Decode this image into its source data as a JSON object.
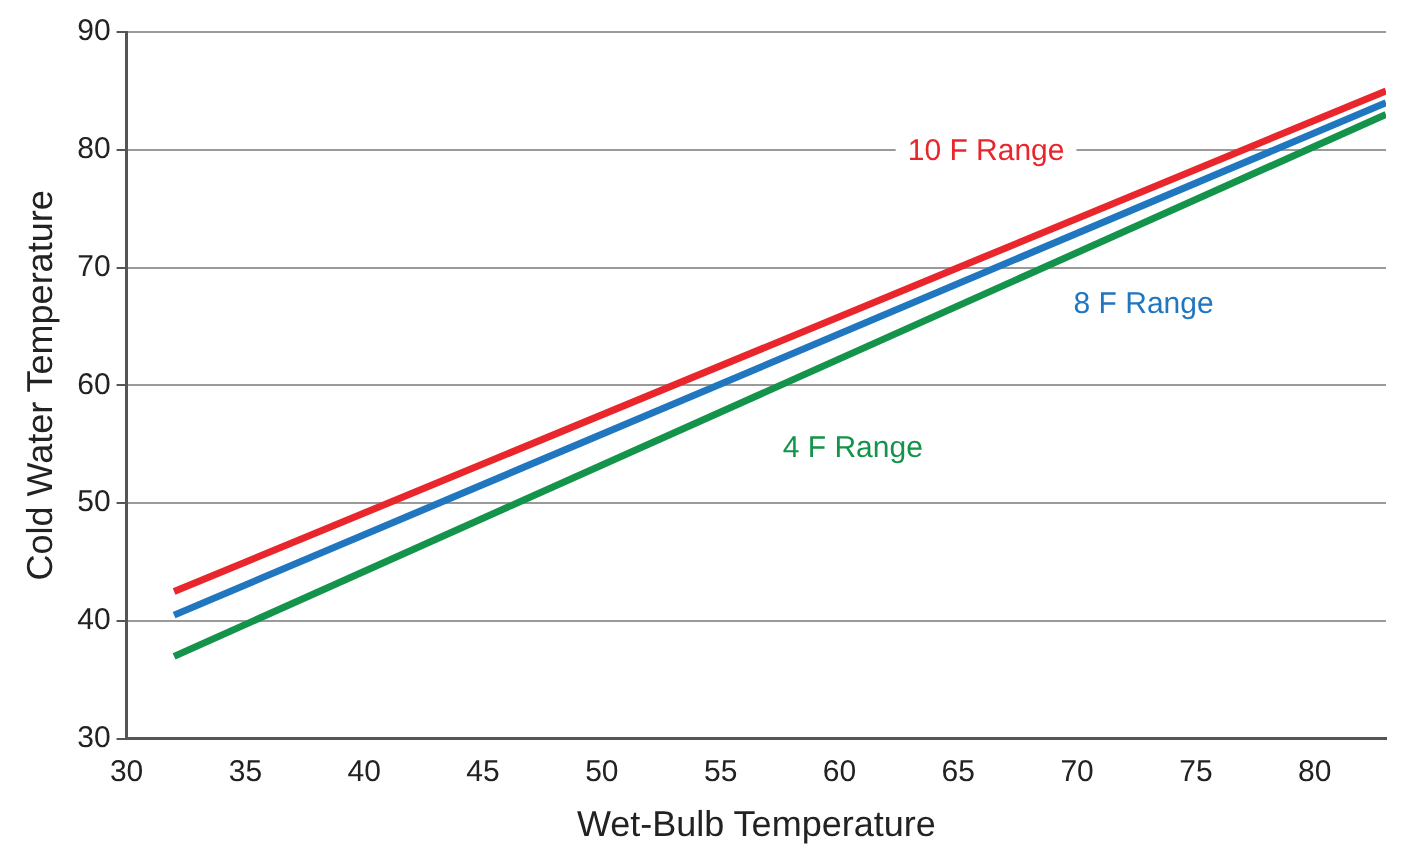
{
  "chart_data": {
    "type": "line",
    "xlabel": "Wet-Bulb Temperature",
    "ylabel": "Cold Water Temperature",
    "xlim": [
      30,
      83
    ],
    "xticks": [
      30,
      35,
      40,
      45,
      50,
      55,
      60,
      65,
      70,
      75,
      80
    ],
    "ylim": [
      30,
      90
    ],
    "yticks": [
      30,
      40,
      50,
      60,
      70,
      80,
      90
    ],
    "grid": "y",
    "x": [
      32,
      83
    ],
    "legend": false,
    "marker": "none",
    "line_style": "solid",
    "series": [
      {
        "name": "10 F Range",
        "color": "#e8262c",
        "values": [
          42.5,
          85
        ]
      },
      {
        "name": "8 F Range",
        "color": "#2176c0",
        "values": [
          40.5,
          84
        ]
      },
      {
        "name": "4 F Range",
        "color": "#14934a",
        "values": [
          37,
          83
        ]
      }
    ]
  }
}
